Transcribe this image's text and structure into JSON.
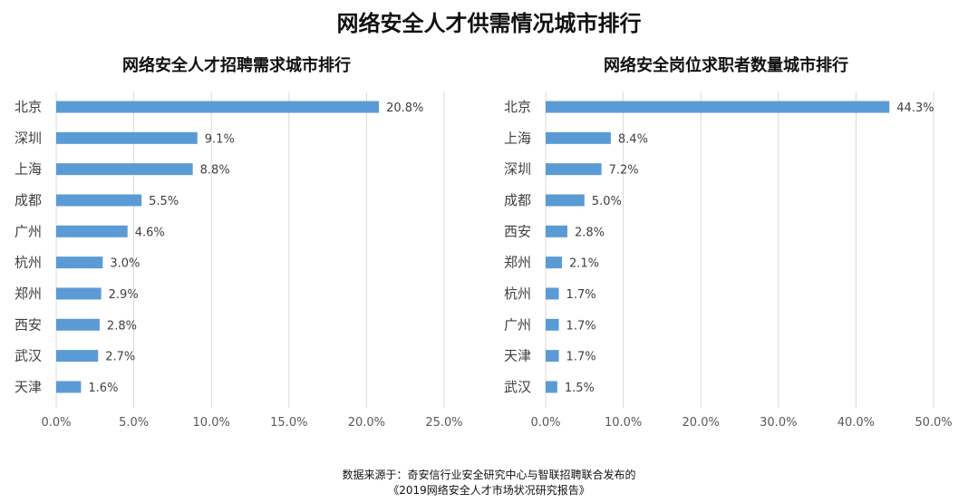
{
  "title": "网络安全人才供需情况城市排行",
  "chart_data": [
    {
      "type": "bar",
      "orientation": "horizontal",
      "title": "网络安全人才招聘需求城市排行",
      "categories": [
        "北京",
        "深圳",
        "上海",
        "成都",
        "广州",
        "杭州",
        "郑州",
        "西安",
        "武汉",
        "天津"
      ],
      "values": [
        20.8,
        9.1,
        8.8,
        5.5,
        4.6,
        3.0,
        2.9,
        2.8,
        2.7,
        1.6
      ],
      "value_labels": [
        "20.8%",
        "9.1%",
        "8.8%",
        "5.5%",
        "4.6%",
        "3.0%",
        "2.9%",
        "2.8%",
        "2.7%",
        "1.6%"
      ],
      "xlim": [
        0,
        25
      ],
      "ticks": [
        0,
        5,
        10,
        15,
        20,
        25
      ],
      "tick_labels": [
        "0.0%",
        "5.0%",
        "10.0%",
        "15.0%",
        "20.0%",
        "25.0%"
      ],
      "grid": true,
      "bar_color": "#5b9bd5"
    },
    {
      "type": "bar",
      "orientation": "horizontal",
      "title": "网络安全岗位求职者数量城市排行",
      "categories": [
        "北京",
        "上海",
        "深圳",
        "成都",
        "西安",
        "郑州",
        "杭州",
        "广州",
        "天津",
        "武汉"
      ],
      "values": [
        44.3,
        8.4,
        7.2,
        5.0,
        2.8,
        2.1,
        1.7,
        1.7,
        1.7,
        1.5
      ],
      "value_labels": [
        "44.3%",
        "8.4%",
        "7.2%",
        "5.0%",
        "2.8%",
        "2.1%",
        "1.7%",
        "1.7%",
        "1.7%",
        "1.5%"
      ],
      "xlim": [
        0,
        50
      ],
      "ticks": [
        0,
        10,
        20,
        30,
        40,
        50
      ],
      "tick_labels": [
        "0.0%",
        "10.0%",
        "20.0%",
        "30.0%",
        "40.0%",
        "50.0%"
      ],
      "grid": true,
      "bar_color": "#5b9bd5"
    }
  ],
  "source": {
    "line1": "数据来源于：奇安信行业安全研究中心与智联招聘联合发布的",
    "line2": "《2019网络安全人才市场状况研究报告》"
  }
}
